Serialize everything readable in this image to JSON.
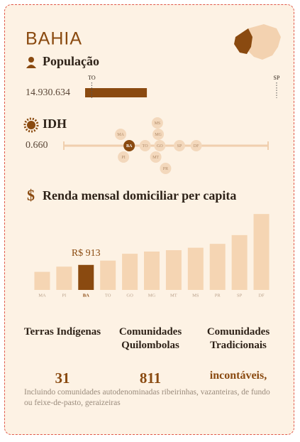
{
  "title": "BAHIA",
  "populacao": {
    "label": "População",
    "value": 14930634,
    "value_label": "14.930.634",
    "markers": [
      {
        "name": "TO",
        "value": 1607363
      },
      {
        "name": "SP",
        "value": 46289333
      }
    ]
  },
  "idh": {
    "label": "IDH",
    "value_label": "0.660",
    "xlim": [
      0.5,
      1.0
    ],
    "highlight": "BA",
    "states": [
      {
        "name": "MA",
        "value": 0.639
      },
      {
        "name": "PI",
        "value": 0.646
      },
      {
        "name": "BA",
        "value": 0.66
      },
      {
        "name": "TO",
        "value": 0.699
      },
      {
        "name": "GO",
        "value": 0.735
      },
      {
        "name": "MG",
        "value": 0.731
      },
      {
        "name": "MT",
        "value": 0.725
      },
      {
        "name": "MS",
        "value": 0.729
      },
      {
        "name": "PR",
        "value": 0.749
      },
      {
        "name": "SP",
        "value": 0.783
      },
      {
        "name": "DF",
        "value": 0.824
      }
    ]
  },
  "renda": {
    "type": "bar",
    "title": "Renda mensal domiciliar per capita",
    "ylim": [
      0,
      2800
    ],
    "color": "#f5d5b3",
    "highlight_color": "#8a4a10",
    "highlight": "BA",
    "categories": [
      "MA",
      "PI",
      "BA",
      "TO",
      "GO",
      "MG",
      "MT",
      "MS",
      "PR",
      "SP",
      "DF"
    ],
    "values": [
      660,
      850,
      913,
      1070,
      1320,
      1400,
      1450,
      1540,
      1680,
      2000,
      2770
    ],
    "value_labels": [
      null,
      null,
      "R$ 913",
      null,
      null,
      null,
      null,
      null,
      null,
      null,
      null
    ]
  },
  "stats": [
    {
      "label": "Terras Indígenas",
      "value": "31"
    },
    {
      "label": "Comunidades Quilombolas",
      "value": "811"
    },
    {
      "label": "Comunidades Tradicionais",
      "value": "incontáveis,"
    }
  ],
  "note": "Incluindo comunidades autodenominadas ribeirinhas, vazanteiras, de fundo ou feixe-de-pasto, geraizeiras"
}
